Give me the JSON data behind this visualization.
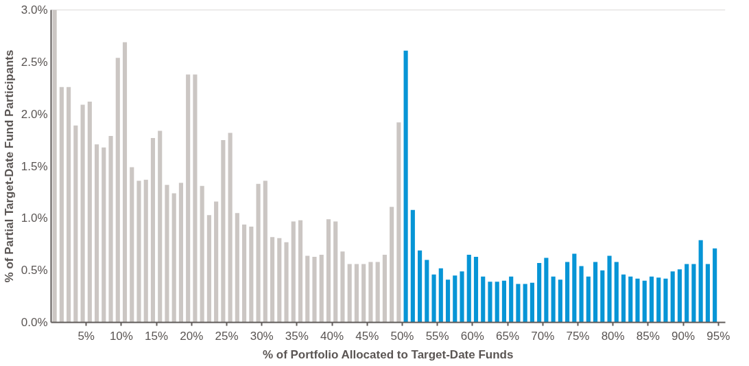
{
  "chart_data": {
    "type": "bar",
    "xlabel": "% of Portfolio Allocated to Target-Date Funds",
    "ylabel": "% of Partial Target-Date Fund Participants",
    "xlim": [
      0,
      96
    ],
    "ylim": [
      0,
      3.0
    ],
    "xticks": [
      {
        "value": 5,
        "label": "5%"
      },
      {
        "value": 10,
        "label": "10%"
      },
      {
        "value": 15,
        "label": "15%"
      },
      {
        "value": 20,
        "label": "20%"
      },
      {
        "value": 25,
        "label": "25%"
      },
      {
        "value": 30,
        "label": "30%"
      },
      {
        "value": 35,
        "label": "35%"
      },
      {
        "value": 40,
        "label": "40%"
      },
      {
        "value": 45,
        "label": "45%"
      },
      {
        "value": 50,
        "label": "50%"
      },
      {
        "value": 55,
        "label": "55%"
      },
      {
        "value": 60,
        "label": "60%"
      },
      {
        "value": 65,
        "label": "65%"
      },
      {
        "value": 70,
        "label": "70%"
      },
      {
        "value": 75,
        "label": "75%"
      },
      {
        "value": 80,
        "label": "80%"
      },
      {
        "value": 85,
        "label": "85%"
      },
      {
        "value": 90,
        "label": "90%"
      },
      {
        "value": 95,
        "label": "95%"
      }
    ],
    "yticks": [
      {
        "value": 0,
        "label": "0.0%"
      },
      {
        "value": 0.5,
        "label": "0.5%"
      },
      {
        "value": 1.0,
        "label": "1.0%"
      },
      {
        "value": 1.5,
        "label": "1.5%"
      },
      {
        "value": 2.0,
        "label": "2.0%"
      },
      {
        "value": 2.5,
        "label": "2.5%"
      },
      {
        "value": 3.0,
        "label": "3.0%"
      }
    ],
    "grid": false,
    "series": [
      {
        "color": "#cbc6c3",
        "x": [
          0.5,
          1.5,
          2.5,
          3.5,
          4.5,
          5.5,
          6.5,
          7.5,
          8.5,
          9.5,
          10.5,
          11.5,
          12.5,
          13.5,
          14.5,
          15.5,
          16.5,
          17.5,
          18.5,
          19.5,
          20.5,
          21.5,
          22.5,
          23.5,
          24.5,
          25.5,
          26.5,
          27.5,
          28.5,
          29.5,
          30.5,
          31.5,
          32.5,
          33.5,
          34.5,
          35.5,
          36.5,
          37.5,
          38.5,
          39.5,
          40.5,
          41.5,
          42.5,
          43.5,
          44.5,
          45.5,
          46.5,
          47.5,
          48.5,
          49.5
        ],
        "values": [
          3.0,
          2.26,
          2.26,
          1.89,
          2.09,
          2.12,
          1.71,
          1.68,
          1.79,
          2.54,
          2.69,
          1.49,
          1.36,
          1.37,
          1.77,
          1.84,
          1.32,
          1.24,
          1.34,
          2.38,
          2.38,
          1.31,
          1.03,
          1.16,
          1.75,
          1.82,
          1.05,
          0.94,
          0.92,
          1.33,
          1.36,
          0.82,
          0.81,
          0.77,
          0.97,
          0.98,
          0.64,
          0.63,
          0.65,
          0.99,
          0.97,
          0.68,
          0.56,
          0.56,
          0.56,
          0.58,
          0.58,
          0.65,
          1.11,
          1.92
        ]
      },
      {
        "color": "#0795d6",
        "x": [
          50.5,
          51.5,
          52.5,
          53.5,
          54.5,
          55.5,
          56.5,
          57.5,
          58.5,
          59.5,
          60.5,
          61.5,
          62.5,
          63.5,
          64.5,
          65.5,
          66.5,
          67.5,
          68.5,
          69.5,
          70.5,
          71.5,
          72.5,
          73.5,
          74.5,
          75.5,
          76.5,
          77.5,
          78.5,
          79.5,
          80.5,
          81.5,
          82.5,
          83.5,
          84.5,
          85.5,
          86.5,
          87.5,
          88.5,
          89.5,
          90.5,
          91.5,
          92.5,
          93.5,
          94.5
        ],
        "values": [
          2.61,
          1.08,
          0.69,
          0.6,
          0.46,
          0.52,
          0.41,
          0.45,
          0.49,
          0.65,
          0.63,
          0.44,
          0.39,
          0.39,
          0.4,
          0.44,
          0.37,
          0.37,
          0.38,
          0.57,
          0.62,
          0.44,
          0.41,
          0.58,
          0.66,
          0.54,
          0.44,
          0.58,
          0.5,
          0.64,
          0.58,
          0.46,
          0.44,
          0.42,
          0.4,
          0.44,
          0.43,
          0.42,
          0.49,
          0.51,
          0.56,
          0.56,
          0.79,
          0.56,
          0.71
        ]
      }
    ]
  }
}
